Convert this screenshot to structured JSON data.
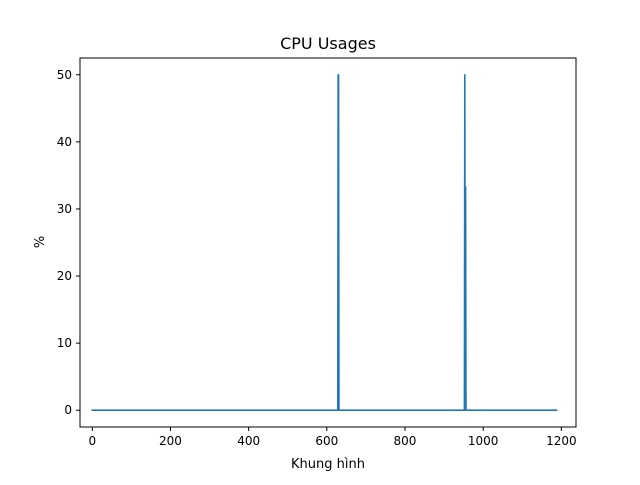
{
  "chart_data": {
    "type": "line",
    "title": "CPU Usages",
    "xlabel": "Khung hình",
    "ylabel": "%",
    "xlim": [
      -31.5,
      1237.5
    ],
    "ylim": [
      -2.5,
      52.5
    ],
    "xticks": [
      0,
      200,
      400,
      600,
      800,
      1000,
      1200
    ],
    "yticks": [
      0,
      10,
      20,
      30,
      40,
      50
    ],
    "grid": false,
    "legend": "none",
    "series": [
      {
        "color": "#1f77b4",
        "x": [
          0,
          628,
          629,
          630,
          631,
          632,
          952,
          953,
          954,
          955,
          956,
          957,
          1188
        ],
        "y": [
          0,
          0,
          50,
          50,
          0,
          0,
          0,
          50,
          0,
          33.3,
          0,
          0,
          0
        ]
      }
    ]
  }
}
